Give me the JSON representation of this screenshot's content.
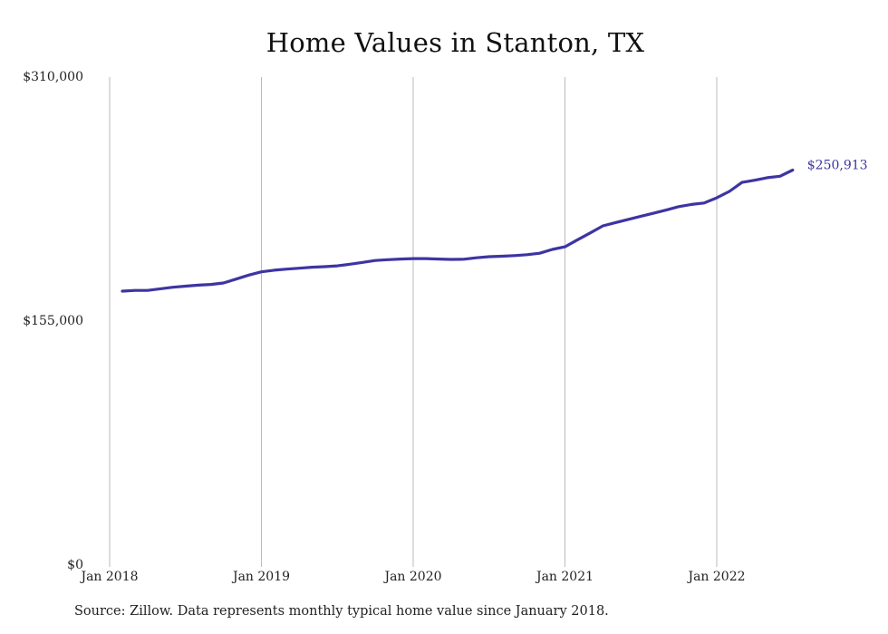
{
  "title": "Home Values in Stanton, TX",
  "source_note": "Source: Zillow. Data represents monthly typical home value since January 2018.",
  "colors": {
    "line": "#3d35a2",
    "grid": "#bbbbbb",
    "text": "#222222"
  },
  "chart_data": {
    "type": "line",
    "title": "Home Values in Stanton, TX",
    "xlabel": "",
    "ylabel": "",
    "ylim": [
      0,
      310000
    ],
    "yticks": [
      0,
      155000,
      310000
    ],
    "ytick_labels": [
      "$0",
      "$155,000",
      "$310,000"
    ],
    "xticks": [
      "2018-01",
      "2019-01",
      "2020-01",
      "2021-01",
      "2022-01"
    ],
    "xtick_labels": [
      "Jan 2018",
      "Jan 2019",
      "Jan 2020",
      "Jan 2021",
      "Jan 2022"
    ],
    "grid": "vertical",
    "end_label": "$250,913",
    "series": [
      {
        "x": [
          "2018-02",
          "2018-03",
          "2018-04",
          "2018-05",
          "2018-06",
          "2018-07",
          "2018-08",
          "2018-09",
          "2018-10",
          "2018-11",
          "2018-12",
          "2019-01",
          "2019-02",
          "2019-03",
          "2019-04",
          "2019-05",
          "2019-06",
          "2019-07",
          "2019-08",
          "2019-09",
          "2019-10",
          "2019-11",
          "2019-12",
          "2020-01",
          "2020-02",
          "2020-03",
          "2020-04",
          "2020-05",
          "2020-06",
          "2020-07",
          "2020-08",
          "2020-09",
          "2020-10",
          "2020-11",
          "2020-12",
          "2021-01",
          "2021-02",
          "2021-03",
          "2021-04",
          "2021-05",
          "2021-06",
          "2021-07",
          "2021-08",
          "2021-09",
          "2021-10",
          "2021-11",
          "2021-12",
          "2022-01",
          "2022-02",
          "2022-03",
          "2022-04",
          "2022-05",
          "2022-06",
          "2022-07"
        ],
        "values": [
          174000,
          174500,
          174500,
          175500,
          176500,
          177200,
          177800,
          178300,
          179200,
          181700,
          184200,
          186300,
          187300,
          188000,
          188600,
          189200,
          189600,
          190100,
          191100,
          192300,
          193500,
          194000,
          194400,
          194700,
          194700,
          194400,
          194200,
          194300,
          195200,
          195900,
          196200,
          196600,
          197200,
          198100,
          200500,
          202200,
          206700,
          211000,
          215500,
          217600,
          219600,
          221600,
          223500,
          225500,
          227700,
          229100,
          230000,
          233300,
          237400,
          243100,
          244500,
          246100,
          247000,
          250913
        ]
      }
    ]
  }
}
